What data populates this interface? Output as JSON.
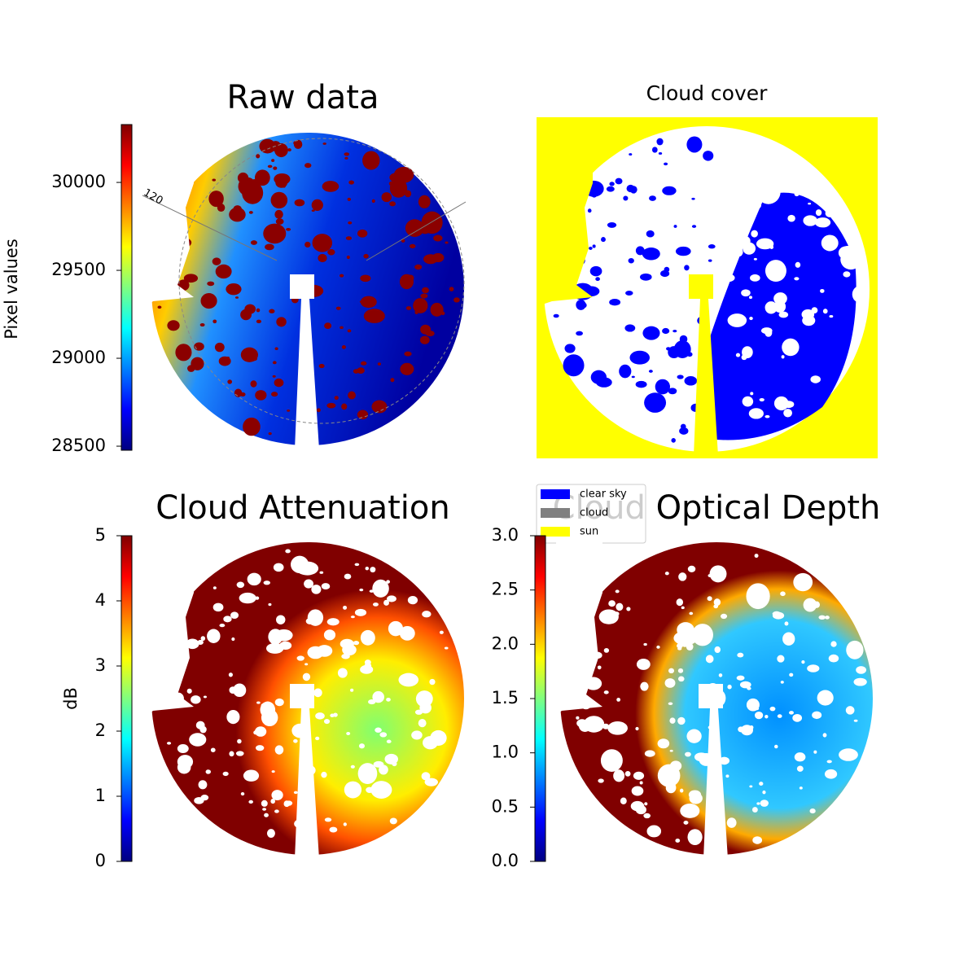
{
  "chart_data": [
    {
      "type": "image",
      "title": "Raw data",
      "colorbar_label": "Pixel values",
      "clim": [
        28477,
        30329
      ],
      "cticks": [
        28500,
        29000,
        29500,
        30000
      ],
      "annotation": "120"
    },
    {
      "type": "mask",
      "title": "Cloud cover",
      "series": [
        {
          "name": "clear sky",
          "color": "#0000ff"
        },
        {
          "name": "cloud",
          "color": "#808080"
        },
        {
          "name": "sun",
          "color": "#ffff00"
        }
      ]
    },
    {
      "type": "image",
      "title": "Cloud Attenuation",
      "colorbar_label": "dB",
      "clim": [
        0,
        5
      ],
      "cticks": [
        0,
        1,
        2,
        3,
        4,
        5
      ]
    },
    {
      "type": "image",
      "title": "Cloud Optical Depth",
      "clim": [
        0,
        3
      ],
      "cticks": [
        {
          "value": 0,
          "label": "0.0"
        },
        {
          "value": 0.5,
          "label": "0.5"
        },
        {
          "value": 1,
          "label": "1.0"
        },
        {
          "value": 1.5,
          "label": "1.5"
        },
        {
          "value": 2,
          "label": "2.0"
        },
        {
          "value": 2.5,
          "label": "2.5"
        },
        {
          "value": 3,
          "label": "3.0"
        }
      ]
    }
  ]
}
